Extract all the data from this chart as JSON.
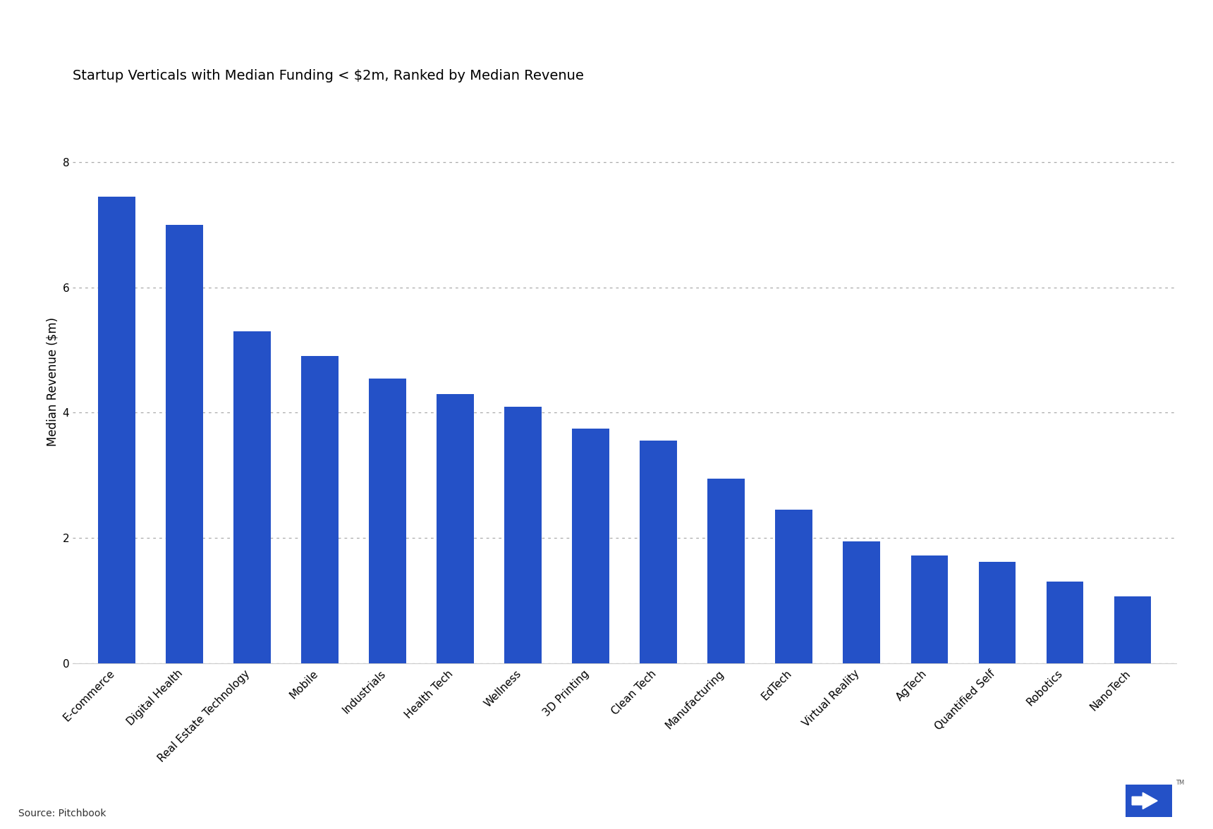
{
  "title": "Startup Verticals with Median Funding < $2m, Ranked by Median Revenue",
  "xlabel": "",
  "ylabel": "Median Revenue ($m)",
  "categories": [
    "E-commerce",
    "Digital Health",
    "Real Estate Technology",
    "Mobile",
    "Industrials",
    "Health Tech",
    "Wellness",
    "3D Printing",
    "Clean Tech",
    "Manufacturing",
    "EdTech",
    "Virtual Reality",
    "AgTech",
    "Quantified Self",
    "Robotics",
    "NanoTech"
  ],
  "values": [
    7.45,
    7.0,
    5.3,
    4.9,
    4.55,
    4.3,
    4.1,
    3.75,
    3.55,
    2.95,
    2.45,
    1.95,
    1.72,
    1.62,
    1.3,
    1.07
  ],
  "bar_color": "#2451C7",
  "background_color": "#ffffff",
  "ylim": [
    0,
    9
  ],
  "yticks": [
    0,
    2,
    4,
    6,
    8
  ],
  "title_fontsize": 14,
  "ylabel_fontsize": 12,
  "tick_fontsize": 11,
  "source_text": "Source: Pitchbook",
  "grid_color": "#aaaaaa",
  "logo_color": "#2451C7"
}
